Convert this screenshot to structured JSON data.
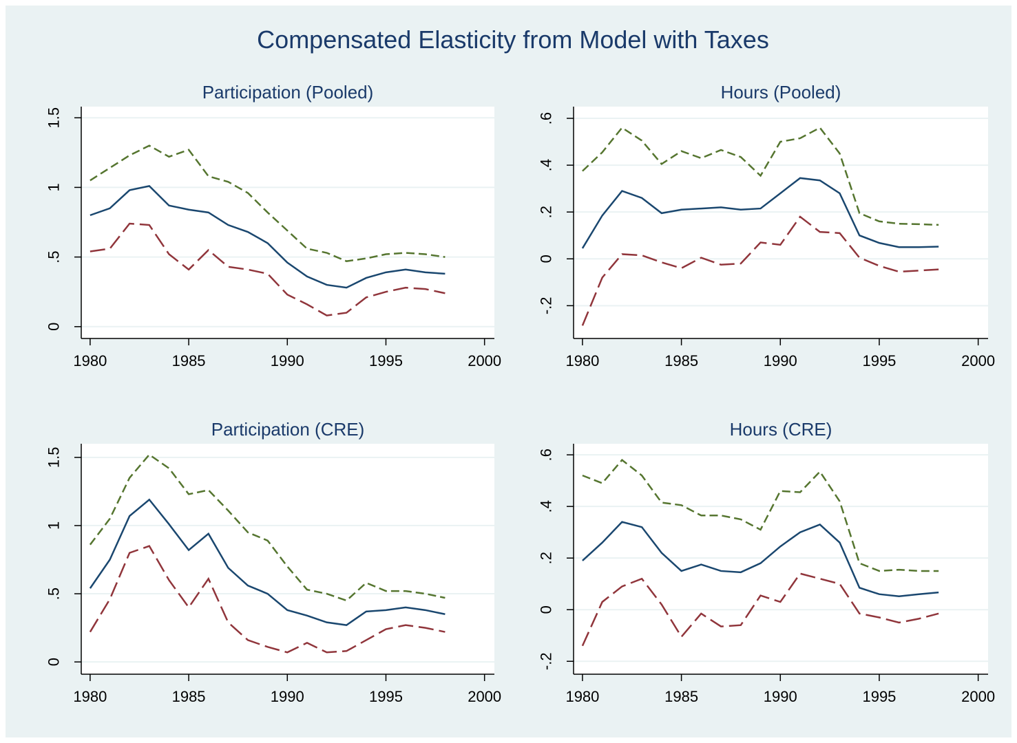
{
  "title": "Compensated Elasticity from Model with Taxes",
  "chart_data": [
    {
      "type": "line",
      "title": "Participation (Pooled)",
      "grid": true,
      "x": [
        1980,
        1981,
        1982,
        1983,
        1984,
        1985,
        1986,
        1987,
        1988,
        1989,
        1990,
        1991,
        1992,
        1993,
        1994,
        1995,
        1996,
        1997,
        1998
      ],
      "xlim": [
        1979.55,
        2000.5
      ],
      "xticks": [
        1980,
        1985,
        1990,
        1995,
        2000
      ],
      "ylim": [
        -0.085,
        1.58
      ],
      "yticks": [
        0,
        {
          "value": 0.5,
          "label": ".5"
        },
        1,
        1.5
      ],
      "series": [
        {
          "color": "#1a476f",
          "dash": "solid",
          "values": [
            0.8,
            0.85,
            0.98,
            1.01,
            0.87,
            0.84,
            0.82,
            0.73,
            0.68,
            0.6,
            0.46,
            0.36,
            0.3,
            0.28,
            0.35,
            0.39,
            0.41,
            0.39,
            0.38
          ]
        },
        {
          "color": "#55752f",
          "dash": "dash",
          "values": [
            1.05,
            1.14,
            1.23,
            1.3,
            1.22,
            1.27,
            1.08,
            1.04,
            0.96,
            0.82,
            0.69,
            0.56,
            0.53,
            0.47,
            0.49,
            0.52,
            0.53,
            0.52,
            0.5
          ]
        },
        {
          "color": "#90353b",
          "dash": "longdash",
          "values": [
            0.54,
            0.56,
            0.74,
            0.73,
            0.52,
            0.41,
            0.55,
            0.43,
            0.41,
            0.38,
            0.23,
            0.16,
            0.08,
            0.1,
            0.21,
            0.25,
            0.28,
            0.27,
            0.24
          ]
        }
      ]
    },
    {
      "type": "line",
      "title": "Hours (Pooled)",
      "grid": true,
      "x": [
        1980,
        1981,
        1982,
        1983,
        1984,
        1985,
        1986,
        1987,
        1988,
        1989,
        1990,
        1991,
        1992,
        1993,
        1994,
        1995,
        1996,
        1997,
        1998
      ],
      "xlim": [
        1979.55,
        2000.5
      ],
      "xticks": [
        1980,
        1985,
        1990,
        1995,
        2000
      ],
      "ylim": [
        -0.34,
        0.65
      ],
      "yticks": [
        {
          "value": -0.2,
          "label": "-.2"
        },
        0,
        {
          "value": 0.2,
          "label": ".2"
        },
        {
          "value": 0.4,
          "label": ".4"
        },
        {
          "value": 0.6,
          "label": ".6"
        }
      ],
      "series": [
        {
          "color": "#1a476f",
          "dash": "solid",
          "values": [
            0.045,
            0.185,
            0.29,
            0.26,
            0.195,
            0.21,
            0.215,
            0.22,
            0.21,
            0.215,
            0.28,
            0.345,
            0.335,
            0.28,
            0.1,
            0.068,
            0.05,
            0.05,
            0.052
          ]
        },
        {
          "color": "#55752f",
          "dash": "dash",
          "values": [
            0.375,
            0.455,
            0.56,
            0.505,
            0.405,
            0.46,
            0.43,
            0.465,
            0.435,
            0.355,
            0.5,
            0.515,
            0.56,
            0.45,
            0.195,
            0.16,
            0.15,
            0.148,
            0.145
          ]
        },
        {
          "color": "#90353b",
          "dash": "longdash",
          "values": [
            -0.285,
            -0.08,
            0.02,
            0.015,
            -0.015,
            -0.04,
            0.005,
            -0.025,
            -0.02,
            0.07,
            0.06,
            0.18,
            0.115,
            0.11,
            0.005,
            -0.03,
            -0.055,
            -0.05,
            -0.045
          ]
        }
      ]
    },
    {
      "type": "line",
      "title": "Participation (CRE)",
      "grid": true,
      "x": [
        1980,
        1981,
        1982,
        1983,
        1984,
        1985,
        1986,
        1987,
        1988,
        1989,
        1990,
        1991,
        1992,
        1993,
        1994,
        1995,
        1996,
        1997,
        1998
      ],
      "xlim": [
        1979.55,
        2000.5
      ],
      "xticks": [
        1980,
        1985,
        1990,
        1995,
        2000
      ],
      "ylim": [
        -0.09,
        1.6
      ],
      "yticks": [
        0,
        {
          "value": 0.5,
          "label": ".5"
        },
        1,
        1.5
      ],
      "series": [
        {
          "color": "#1a476f",
          "dash": "solid",
          "values": [
            0.54,
            0.75,
            1.07,
            1.19,
            1.01,
            0.82,
            0.94,
            0.69,
            0.56,
            0.5,
            0.38,
            0.34,
            0.29,
            0.27,
            0.37,
            0.38,
            0.4,
            0.38,
            0.35
          ]
        },
        {
          "color": "#55752f",
          "dash": "dash",
          "values": [
            0.86,
            1.05,
            1.35,
            1.52,
            1.42,
            1.23,
            1.26,
            1.11,
            0.95,
            0.89,
            0.7,
            0.53,
            0.5,
            0.45,
            0.58,
            0.52,
            0.52,
            0.5,
            0.47
          ]
        },
        {
          "color": "#90353b",
          "dash": "longdash",
          "values": [
            0.22,
            0.46,
            0.8,
            0.85,
            0.6,
            0.4,
            0.61,
            0.29,
            0.16,
            0.11,
            0.07,
            0.14,
            0.07,
            0.08,
            0.16,
            0.24,
            0.27,
            0.25,
            0.22
          ]
        }
      ]
    },
    {
      "type": "line",
      "title": "Hours (CRE)",
      "grid": true,
      "x": [
        1980,
        1981,
        1982,
        1983,
        1984,
        1985,
        1986,
        1987,
        1988,
        1989,
        1990,
        1991,
        1992,
        1993,
        1994,
        1995,
        1996,
        1997,
        1998
      ],
      "xlim": [
        1979.55,
        2000.5
      ],
      "xticks": [
        1980,
        1985,
        1990,
        1995,
        2000
      ],
      "ylim": [
        -0.25,
        0.643
      ],
      "yticks": [
        {
          "value": -0.2,
          "label": "-.2"
        },
        0,
        {
          "value": 0.2,
          "label": ".2"
        },
        {
          "value": 0.4,
          "label": ".4"
        },
        {
          "value": 0.6,
          "label": ".6"
        }
      ],
      "series": [
        {
          "color": "#1a476f",
          "dash": "solid",
          "values": [
            0.19,
            0.26,
            0.34,
            0.32,
            0.22,
            0.15,
            0.175,
            0.15,
            0.145,
            0.18,
            0.245,
            0.3,
            0.33,
            0.26,
            0.085,
            0.06,
            0.052,
            0.06,
            0.067
          ]
        },
        {
          "color": "#55752f",
          "dash": "dash",
          "values": [
            0.52,
            0.49,
            0.58,
            0.52,
            0.415,
            0.405,
            0.365,
            0.365,
            0.35,
            0.31,
            0.46,
            0.455,
            0.535,
            0.42,
            0.18,
            0.15,
            0.155,
            0.15,
            0.15
          ]
        },
        {
          "color": "#90353b",
          "dash": "longdash",
          "values": [
            -0.14,
            0.03,
            0.09,
            0.12,
            0.02,
            -0.105,
            -0.015,
            -0.065,
            -0.06,
            0.055,
            0.03,
            0.14,
            0.12,
            0.1,
            -0.015,
            -0.03,
            -0.05,
            -0.035,
            -0.015
          ]
        }
      ]
    }
  ]
}
